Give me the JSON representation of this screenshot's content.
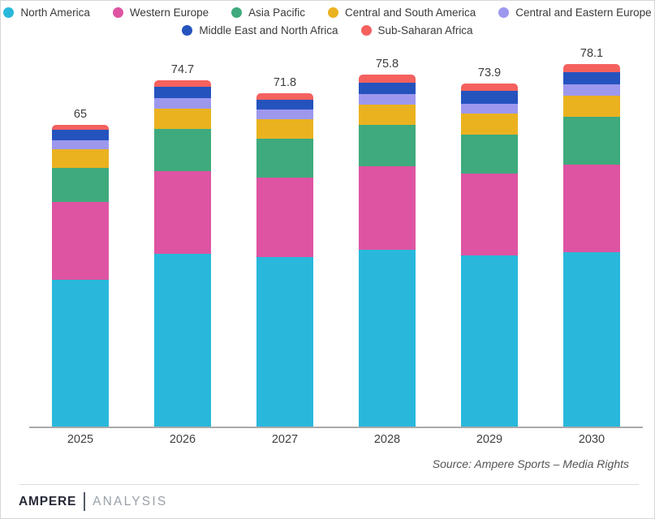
{
  "chart_data": {
    "type": "bar",
    "stacked": true,
    "title": "",
    "categories": [
      "2025",
      "2026",
      "2027",
      "2028",
      "2029",
      "2030"
    ],
    "series": [
      {
        "name": "North America",
        "color": "#29B8DC",
        "values": [
          31.6,
          37.2,
          36.6,
          38.2,
          36.9,
          37.6
        ]
      },
      {
        "name": "Western Europe",
        "color": "#DE54A2",
        "values": [
          16.8,
          17.9,
          17.1,
          17.9,
          17.6,
          18.9
        ]
      },
      {
        "name": "Asia Pacific",
        "color": "#3FAA7D",
        "values": [
          7.3,
          9.1,
          8.3,
          9.0,
          8.5,
          10.3
        ]
      },
      {
        "name": "Central and South America",
        "color": "#EBB220",
        "values": [
          4.0,
          4.3,
          4.3,
          4.3,
          4.4,
          4.5
        ]
      },
      {
        "name": "Central and Eastern Europe",
        "color": "#9D98EE",
        "values": [
          2.0,
          2.3,
          2.0,
          2.2,
          2.2,
          2.5
        ]
      },
      {
        "name": "Middle East and North Africa",
        "color": "#2553BE",
        "values": [
          2.3,
          2.4,
          2.1,
          2.6,
          2.7,
          2.7
        ]
      },
      {
        "name": "Sub-Saharan Africa",
        "color": "#F4615E",
        "values": [
          1.0,
          1.5,
          1.4,
          1.6,
          1.6,
          1.6
        ]
      }
    ],
    "totals_display": [
      "65",
      "74.7",
      "71.8",
      "75.8",
      "73.9",
      "78.1"
    ],
    "ylim": [
      0,
      82
    ],
    "grid": false,
    "legend_position": "top",
    "legend_row_break_after": 5
  },
  "source_note": "Source:  Ampere Sports – Media Rights",
  "footer": {
    "brand_primary": "AMPERE",
    "brand_secondary": "ANALYSIS"
  }
}
